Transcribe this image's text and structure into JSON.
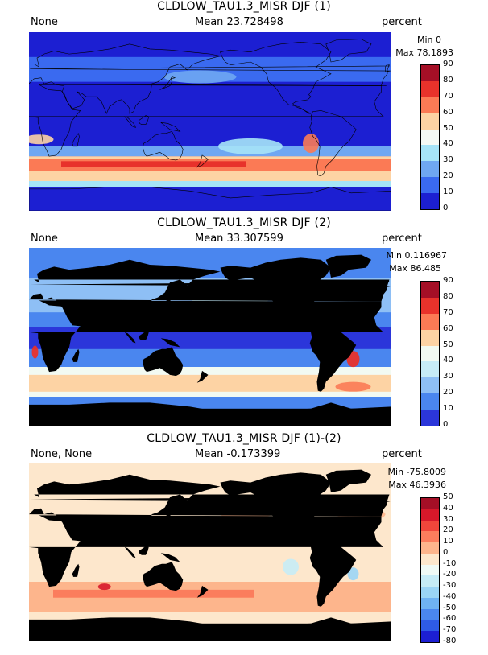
{
  "panels": [
    {
      "title": "CLDLOW_TAU1.3_MISR DJF (1)",
      "left_label": "None",
      "mean_label": "Mean 23.728498",
      "units": "percent",
      "min_label": "Min 0",
      "max_label": "Max 78.1893",
      "colorbar_labels": [
        "90",
        "80",
        "70",
        "60",
        "50",
        "40",
        "30",
        "20",
        "10",
        "0"
      ],
      "colorbar_colors": [
        "#a50f26",
        "#e8322b",
        "#fb7a55",
        "#fdd3a4",
        "#f5faf5",
        "#a6e4f7",
        "#6fa7f2",
        "#3a6af0",
        "#1c1fd2"
      ],
      "map_style": "model"
    },
    {
      "title": "CLDLOW_TAU1.3_MISR DJF (2)",
      "left_label": "None",
      "mean_label": "Mean 33.307599",
      "units": "percent",
      "min_label": "Min 0.116967",
      "max_label": "Max 86.485",
      "colorbar_labels": [
        "90",
        "80",
        "70",
        "60",
        "50",
        "40",
        "30",
        "20",
        "10",
        "0"
      ],
      "colorbar_colors": [
        "#a50f26",
        "#e8322b",
        "#fb7a55",
        "#fdd3a4",
        "#f2faf2",
        "#c7ecf7",
        "#8ebff5",
        "#4a86ef",
        "#2b36da"
      ],
      "map_style": "obs"
    },
    {
      "title": "CLDLOW_TAU1.3_MISR DJF (1)-(2)",
      "left_label": "None, None",
      "mean_label": "Mean -0.173399",
      "units": "percent",
      "min_label": "Min -75.8009",
      "max_label": "Max 46.3936",
      "colorbar_labels": [
        "50",
        "40",
        "30",
        "20",
        "10",
        "0",
        "-10",
        "-20",
        "-30",
        "-40",
        "-50",
        "-60",
        "-70",
        "-80"
      ],
      "colorbar_colors": [
        "#a50f26",
        "#d7182a",
        "#f0463b",
        "#fb7d5d",
        "#fdb58c",
        "#fde7cc",
        "#f0faf5",
        "#c6ecf6",
        "#9bd5f6",
        "#6fb2f3",
        "#4a87ef",
        "#2e5be6",
        "#1c1fd2"
      ],
      "map_style": "diff"
    }
  ]
}
